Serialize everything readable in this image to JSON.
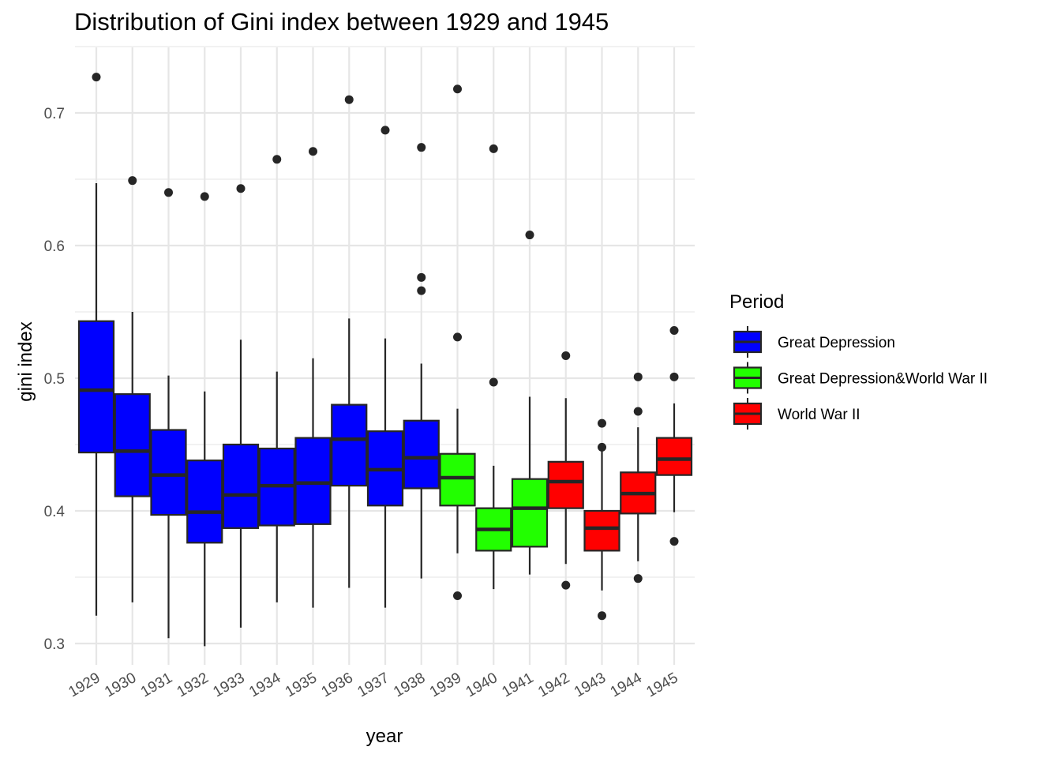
{
  "chart_data": {
    "type": "boxplot",
    "title": "Distribution of Gini index between 1929 and 1945",
    "xlabel": "year",
    "ylabel": "gini index",
    "ylim": [
      0.28,
      0.75
    ],
    "yticks": [
      "0.3",
      "0.4",
      "0.5",
      "0.6",
      "0.7"
    ],
    "grid": true,
    "legend": {
      "title": "Period",
      "position": "right",
      "items": [
        {
          "label": "Great Depression",
          "color": "#0000ff"
        },
        {
          "label": "Great Depression&World War II",
          "color": "#22ff00"
        },
        {
          "label": "World War II",
          "color": "#ff0000"
        }
      ]
    },
    "boxes": [
      {
        "year": "1929",
        "period": "Great Depression",
        "whisker_low": 0.321,
        "q1": 0.444,
        "median": 0.491,
        "q3": 0.543,
        "whisker_high": 0.647,
        "outliers": [
          0.727
        ]
      },
      {
        "year": "1930",
        "period": "Great Depression",
        "whisker_low": 0.331,
        "q1": 0.411,
        "median": 0.445,
        "q3": 0.488,
        "whisker_high": 0.55,
        "outliers": [
          0.649
        ]
      },
      {
        "year": "1931",
        "period": "Great Depression",
        "whisker_low": 0.304,
        "q1": 0.397,
        "median": 0.427,
        "q3": 0.461,
        "whisker_high": 0.502,
        "outliers": [
          0.64
        ]
      },
      {
        "year": "1932",
        "period": "Great Depression",
        "whisker_low": 0.298,
        "q1": 0.376,
        "median": 0.399,
        "q3": 0.438,
        "whisker_high": 0.49,
        "outliers": [
          0.637
        ]
      },
      {
        "year": "1933",
        "period": "Great Depression",
        "whisker_low": 0.312,
        "q1": 0.387,
        "median": 0.412,
        "q3": 0.45,
        "whisker_high": 0.529,
        "outliers": [
          0.643
        ]
      },
      {
        "year": "1934",
        "period": "Great Depression",
        "whisker_low": 0.331,
        "q1": 0.389,
        "median": 0.419,
        "q3": 0.447,
        "whisker_high": 0.505,
        "outliers": [
          0.665
        ]
      },
      {
        "year": "1935",
        "period": "Great Depression",
        "whisker_low": 0.327,
        "q1": 0.39,
        "median": 0.421,
        "q3": 0.455,
        "whisker_high": 0.515,
        "outliers": [
          0.671
        ]
      },
      {
        "year": "1936",
        "period": "Great Depression",
        "whisker_low": 0.342,
        "q1": 0.419,
        "median": 0.454,
        "q3": 0.48,
        "whisker_high": 0.545,
        "outliers": [
          0.71
        ]
      },
      {
        "year": "1937",
        "period": "Great Depression",
        "whisker_low": 0.327,
        "q1": 0.404,
        "median": 0.431,
        "q3": 0.46,
        "whisker_high": 0.53,
        "outliers": [
          0.687
        ]
      },
      {
        "year": "1938",
        "period": "Great Depression",
        "whisker_low": 0.349,
        "q1": 0.417,
        "median": 0.44,
        "q3": 0.468,
        "whisker_high": 0.511,
        "outliers": [
          0.674,
          0.576,
          0.566
        ]
      },
      {
        "year": "1939",
        "period": "Great Depression&World War II",
        "whisker_low": 0.368,
        "q1": 0.404,
        "median": 0.425,
        "q3": 0.443,
        "whisker_high": 0.477,
        "outliers": [
          0.718,
          0.531,
          0.336
        ]
      },
      {
        "year": "1940",
        "period": "Great Depression&World War II",
        "whisker_low": 0.341,
        "q1": 0.37,
        "median": 0.386,
        "q3": 0.402,
        "whisker_high": 0.434,
        "outliers": [
          0.673,
          0.497
        ]
      },
      {
        "year": "1941",
        "period": "Great Depression&World War II",
        "whisker_low": 0.352,
        "q1": 0.373,
        "median": 0.402,
        "q3": 0.424,
        "whisker_high": 0.486,
        "outliers": [
          0.608
        ]
      },
      {
        "year": "1942",
        "period": "World War II",
        "whisker_low": 0.36,
        "q1": 0.402,
        "median": 0.422,
        "q3": 0.437,
        "whisker_high": 0.485,
        "outliers": [
          0.517,
          0.344
        ]
      },
      {
        "year": "1943",
        "period": "World War II",
        "whisker_low": 0.34,
        "q1": 0.37,
        "median": 0.387,
        "q3": 0.4,
        "whisker_high": 0.445,
        "outliers": [
          0.466,
          0.448,
          0.321
        ]
      },
      {
        "year": "1944",
        "period": "World War II",
        "whisker_low": 0.362,
        "q1": 0.398,
        "median": 0.413,
        "q3": 0.429,
        "whisker_high": 0.463,
        "outliers": [
          0.501,
          0.475,
          0.349
        ]
      },
      {
        "year": "1945",
        "period": "World War II",
        "whisker_low": 0.399,
        "q1": 0.427,
        "median": 0.439,
        "q3": 0.455,
        "whisker_high": 0.481,
        "outliers": [
          0.536,
          0.501,
          0.377
        ]
      }
    ]
  }
}
